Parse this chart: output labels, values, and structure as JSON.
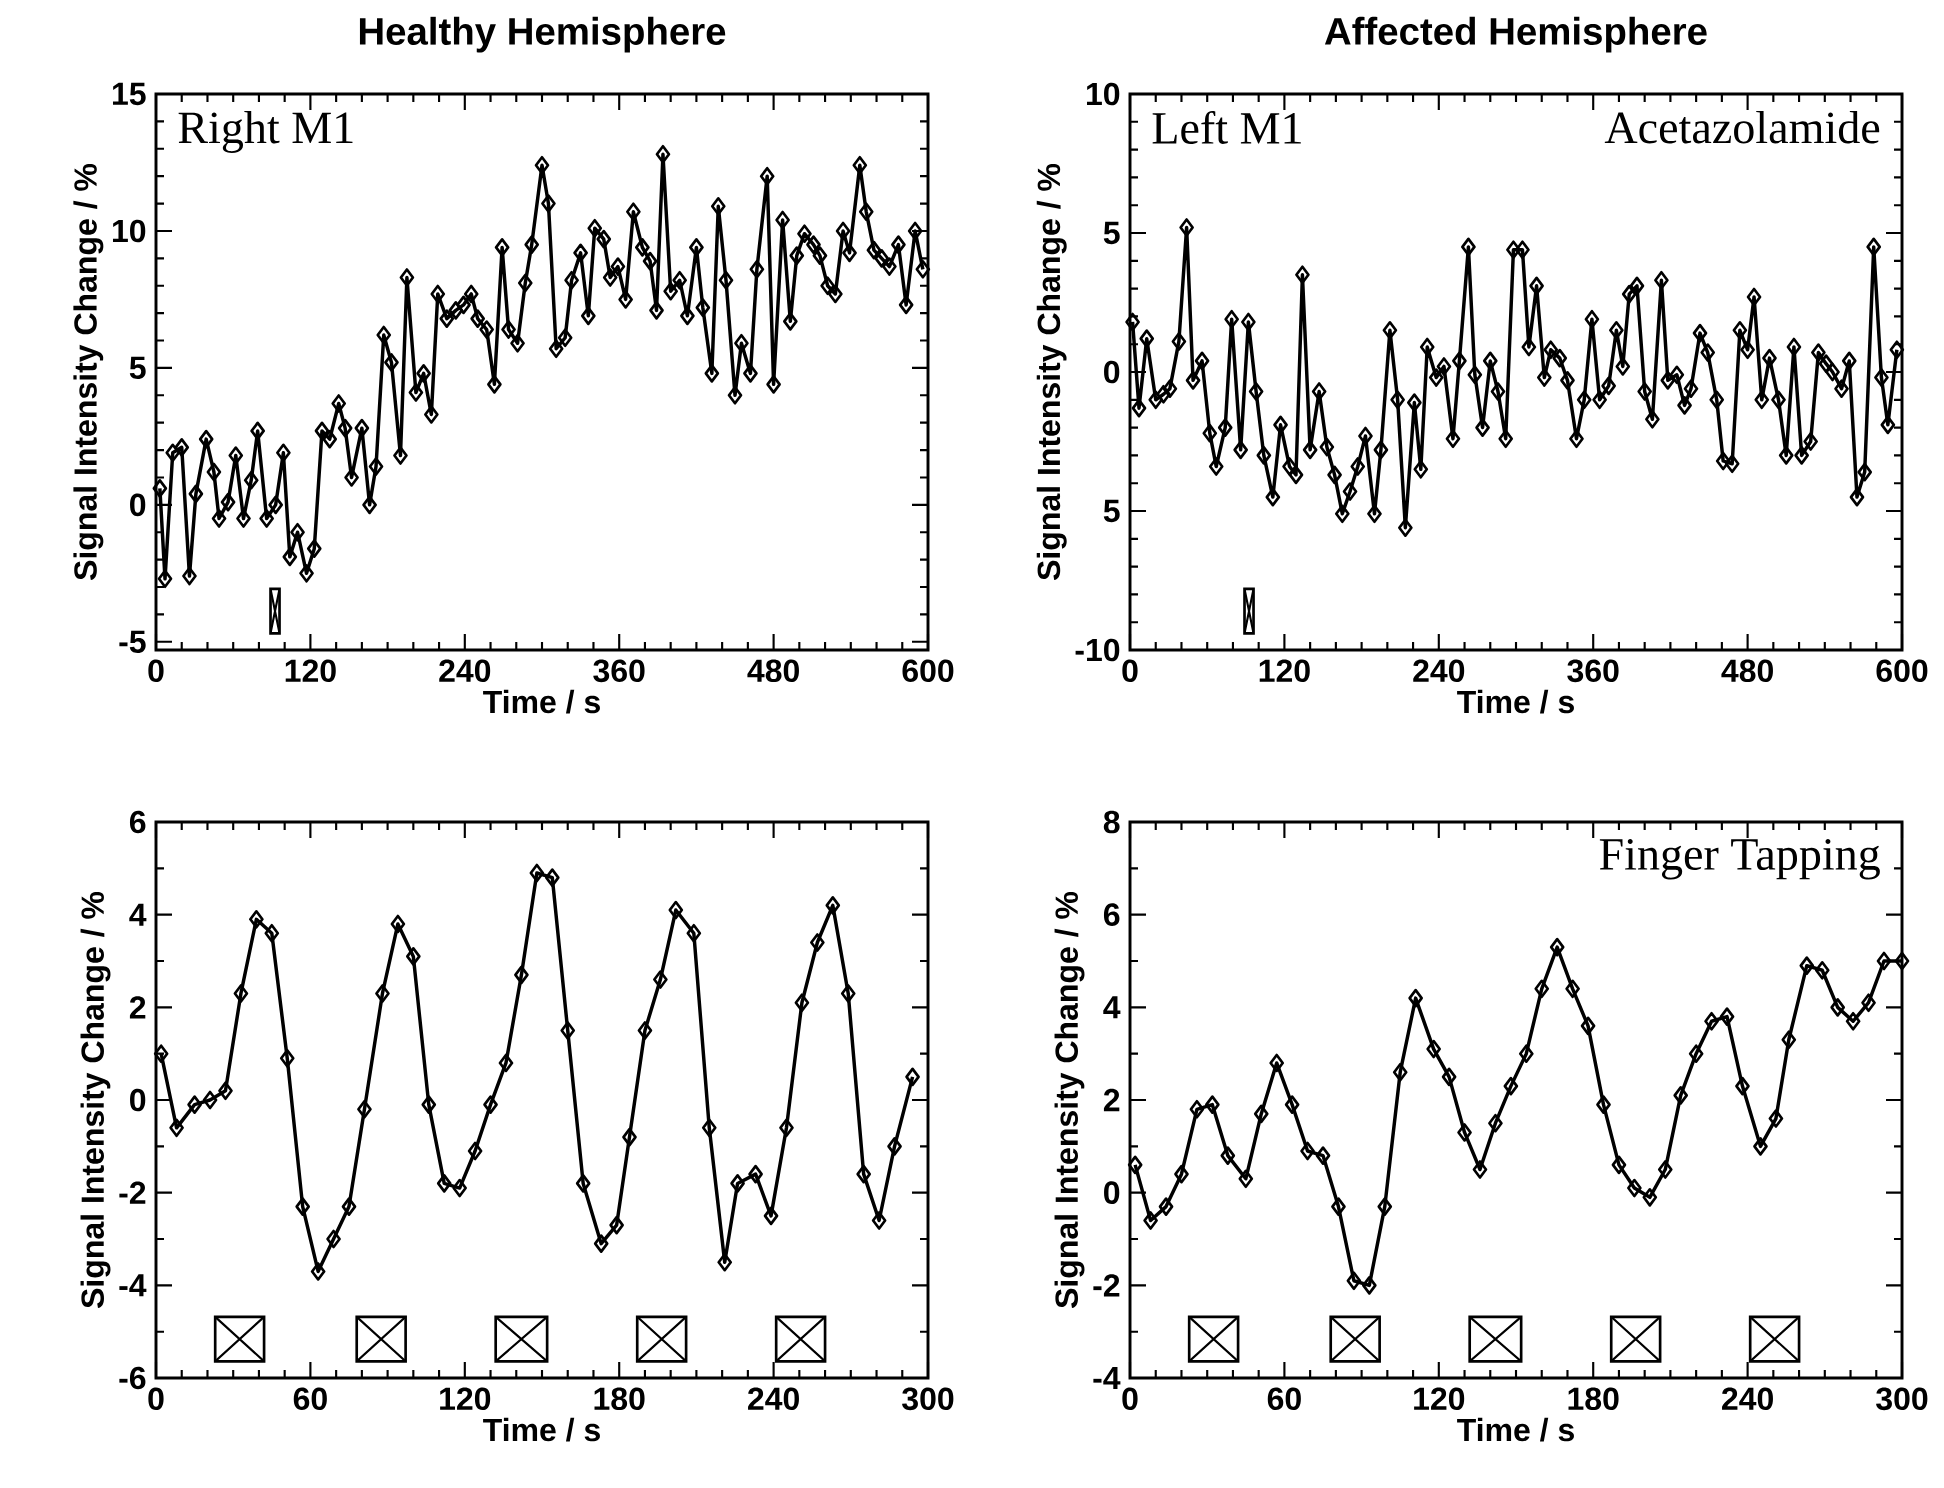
{
  "chart_data": [
    {
      "type": "line",
      "title": "Healthy Hemisphere",
      "xlabel": "Time / s",
      "ylabel": "Signal Intensity Change / %",
      "annotations": [
        "Right M1"
      ],
      "color": "#000000",
      "marker": "diamond",
      "x": [
        3,
        7,
        13,
        20,
        26,
        31,
        39,
        45,
        49,
        56,
        62,
        68,
        74,
        79,
        86,
        93,
        99,
        104,
        110,
        117,
        123,
        129,
        135,
        142,
        147,
        152,
        160,
        166,
        171,
        177,
        183,
        190,
        195,
        202,
        208,
        214,
        219,
        226,
        233,
        239,
        245,
        250,
        257,
        263,
        269,
        274,
        281,
        287,
        292,
        300,
        305,
        311,
        318,
        323,
        330,
        336,
        341,
        348,
        353,
        359,
        365,
        371,
        378,
        384,
        389,
        394,
        400,
        407,
        413,
        420,
        425,
        432,
        437,
        443,
        450,
        455,
        462,
        467,
        475,
        480,
        487,
        493,
        498,
        504,
        511,
        516,
        522,
        528,
        534,
        539,
        547,
        552,
        558,
        564,
        570,
        577,
        583,
        590,
        596
      ],
      "values": [
        0.6,
        -2.7,
        1.9,
        2.1,
        -2.6,
        0.4,
        2.4,
        1.2,
        -0.5,
        0.1,
        1.8,
        -0.5,
        0.9,
        2.7,
        -0.5,
        0.0,
        1.9,
        -1.9,
        -1.0,
        -2.5,
        -1.6,
        2.7,
        2.4,
        3.7,
        2.8,
        1.0,
        2.8,
        0.0,
        1.4,
        6.2,
        5.2,
        1.8,
        8.3,
        4.1,
        4.8,
        3.3,
        7.7,
        6.8,
        7.1,
        7.3,
        7.7,
        6.8,
        6.4,
        4.4,
        9.4,
        6.4,
        5.9,
        8.1,
        9.5,
        12.4,
        11.0,
        5.7,
        6.1,
        8.2,
        9.2,
        6.9,
        10.1,
        9.7,
        8.3,
        8.7,
        7.5,
        10.7,
        9.4,
        8.9,
        7.1,
        12.8,
        7.8,
        8.2,
        6.9,
        9.4,
        7.2,
        4.8,
        10.9,
        8.2,
        4.0,
        5.9,
        4.8,
        8.6,
        12.0,
        4.4,
        10.4,
        6.7,
        9.1,
        9.9,
        9.5,
        9.1,
        8.0,
        7.7,
        10.0,
        9.2,
        12.4,
        10.7,
        9.3,
        9.0,
        8.7,
        9.5,
        7.3,
        10.0,
        8.6
      ],
      "xlim": [
        0,
        600
      ],
      "ylim": [
        -5.3,
        15
      ],
      "xticks": [
        0,
        120,
        240,
        360,
        480,
        600
      ],
      "yticks": [
        -5,
        0,
        5,
        10,
        15
      ],
      "bands": [
        {
          "axis": "x",
          "from": 89,
          "to": 96
        }
      ]
    },
    {
      "type": "line",
      "title": "Affected Hemisphere",
      "xlabel": "Time / s",
      "ylabel": "Signal Intensity Change / %",
      "annotations": [
        "Left M1",
        "Acetazolamide"
      ],
      "color": "#000000",
      "marker": "diamond",
      "x": [
        2,
        7,
        13,
        20,
        26,
        31,
        38,
        44,
        49,
        56,
        62,
        67,
        74,
        79,
        86,
        92,
        98,
        104,
        111,
        117,
        124,
        129,
        134,
        140,
        147,
        153,
        159,
        165,
        171,
        177,
        183,
        190,
        195,
        202,
        208,
        214,
        221,
        226,
        231,
        238,
        244,
        251,
        256,
        263,
        268,
        274,
        280,
        286,
        292,
        298,
        305,
        310,
        316,
        322,
        327,
        334,
        340,
        347,
        353,
        359,
        365,
        372,
        378,
        383,
        388,
        394,
        400,
        406,
        413,
        418,
        425,
        431,
        436,
        443,
        449,
        456,
        461,
        468,
        474,
        480,
        485,
        491,
        497,
        504,
        510,
        516,
        522,
        529,
        535,
        541,
        546,
        553,
        559,
        565,
        571,
        578,
        584,
        589,
        596
      ],
      "values": [
        1.8,
        -1.3,
        1.2,
        -1.0,
        -0.8,
        -0.6,
        1.1,
        5.2,
        -0.3,
        0.4,
        -2.2,
        -3.4,
        -2.0,
        1.9,
        -2.8,
        1.8,
        -0.7,
        -3.0,
        -4.5,
        -1.9,
        -3.4,
        -3.7,
        3.5,
        -2.8,
        -0.7,
        -2.7,
        -3.7,
        -5.1,
        -4.3,
        -3.4,
        -2.3,
        -5.1,
        -2.8,
        1.5,
        -1.0,
        -5.6,
        -1.1,
        -3.5,
        0.9,
        -0.2,
        0.2,
        -2.4,
        0.4,
        4.5,
        -0.1,
        -2.0,
        0.4,
        -0.7,
        -2.4,
        4.4,
        4.4,
        0.9,
        3.1,
        -0.2,
        0.8,
        0.5,
        -0.3,
        -2.4,
        -1.0,
        1.9,
        -1.0,
        -0.5,
        1.5,
        0.2,
        2.8,
        3.1,
        -0.7,
        -1.7,
        3.3,
        -0.3,
        -0.1,
        -1.2,
        -0.6,
        1.4,
        0.7,
        -1.0,
        -3.2,
        -3.3,
        1.5,
        0.8,
        2.7,
        -1.0,
        0.5,
        -1.0,
        -3.0,
        0.9,
        -3.0,
        -2.5,
        0.7,
        0.3,
        0.0,
        -0.6,
        0.4,
        -4.5,
        -3.6,
        4.5,
        -0.2,
        -1.9,
        0.8
      ],
      "xlim": [
        0,
        600
      ],
      "ylim": [
        -10,
        10
      ],
      "xticks": [
        0,
        120,
        240,
        360,
        480,
        600
      ],
      "yticks": [
        -10,
        {
          "value": -5,
          "label": "5"
        },
        0,
        5,
        10
      ],
      "bands": [
        {
          "axis": "x",
          "from": 89,
          "to": 96
        }
      ]
    },
    {
      "type": "line",
      "xlabel": "Time / s",
      "ylabel": "Signal Intensity Change / %",
      "color": "#000000",
      "marker": "diamond",
      "x": [
        2,
        8,
        15,
        21,
        27,
        33,
        39,
        45,
        51,
        57,
        63,
        69,
        75,
        81,
        88,
        94,
        100,
        106,
        112,
        118,
        124,
        130,
        136,
        142,
        148,
        154,
        160,
        166,
        173,
        179,
        184,
        190,
        196,
        202,
        209,
        215,
        221,
        226,
        233,
        239,
        245,
        251,
        257,
        263,
        269,
        275,
        281,
        287,
        294
      ],
      "values": [
        1.0,
        -0.6,
        -0.1,
        0.0,
        0.2,
        2.3,
        3.9,
        3.6,
        0.9,
        -2.3,
        -3.7,
        -3.0,
        -2.3,
        -0.2,
        2.3,
        3.8,
        3.1,
        -0.1,
        -1.8,
        -1.9,
        -1.1,
        -0.1,
        0.8,
        2.7,
        4.9,
        4.8,
        1.5,
        -1.8,
        -3.1,
        -2.7,
        -0.8,
        1.5,
        2.6,
        4.1,
        3.6,
        -0.6,
        -3.5,
        -1.8,
        -1.6,
        -2.5,
        -0.6,
        2.1,
        3.4,
        4.2,
        2.3,
        -1.6,
        -2.6,
        -1.0,
        0.5
      ],
      "xlim": [
        0,
        300
      ],
      "ylim": [
        -6,
        6
      ],
      "xticks": [
        0,
        60,
        120,
        180,
        240,
        300
      ],
      "yticks": [
        -6,
        -4,
        -2,
        0,
        2,
        4,
        6
      ],
      "bands": [
        {
          "axis": "x",
          "from": 23,
          "to": 42
        },
        {
          "axis": "x",
          "from": 78,
          "to": 97
        },
        {
          "axis": "x",
          "from": 132,
          "to": 152
        },
        {
          "axis": "x",
          "from": 187,
          "to": 206
        },
        {
          "axis": "x",
          "from": 241,
          "to": 260
        }
      ]
    },
    {
      "type": "line",
      "xlabel": "Time / s",
      "ylabel": "Signal Intensity Change / %",
      "annotations": [
        "Finger Tapping"
      ],
      "color": "#000000",
      "marker": "diamond",
      "x": [
        2,
        8,
        14,
        20,
        26,
        32,
        38,
        45,
        51,
        57,
        63,
        69,
        75,
        81,
        87,
        93,
        99,
        105,
        111,
        118,
        124,
        130,
        136,
        142,
        148,
        154,
        160,
        166,
        172,
        178,
        184,
        190,
        196,
        202,
        208,
        214,
        220,
        226,
        232,
        238,
        245,
        251,
        256,
        263,
        269,
        275,
        281,
        287,
        293,
        300
      ],
      "values": [
        0.6,
        -0.6,
        -0.3,
        0.4,
        1.8,
        1.9,
        0.8,
        0.3,
        1.7,
        2.8,
        1.9,
        0.9,
        0.8,
        -0.3,
        -1.9,
        -2.0,
        -0.3,
        2.6,
        4.2,
        3.1,
        2.5,
        1.3,
        0.5,
        1.5,
        2.3,
        3.0,
        4.4,
        5.3,
        4.4,
        3.6,
        1.9,
        0.6,
        0.1,
        -0.1,
        0.5,
        2.1,
        3.0,
        3.7,
        3.8,
        2.3,
        1.0,
        1.6,
        3.3,
        4.9,
        4.8,
        4.0,
        3.7,
        4.1,
        5.0,
        5.0
      ],
      "xlim": [
        0,
        300
      ],
      "ylim": [
        -4,
        8
      ],
      "xticks": [
        0,
        60,
        120,
        180,
        240,
        300
      ],
      "yticks": [
        -4,
        -2,
        0,
        2,
        4,
        6,
        8
      ],
      "bands": [
        {
          "axis": "x",
          "from": 23,
          "to": 42
        },
        {
          "axis": "x",
          "from": 78,
          "to": 97
        },
        {
          "axis": "x",
          "from": 132,
          "to": 152
        },
        {
          "axis": "x",
          "from": 187,
          "to": 206
        },
        {
          "axis": "x",
          "from": 241,
          "to": 260
        }
      ]
    }
  ]
}
